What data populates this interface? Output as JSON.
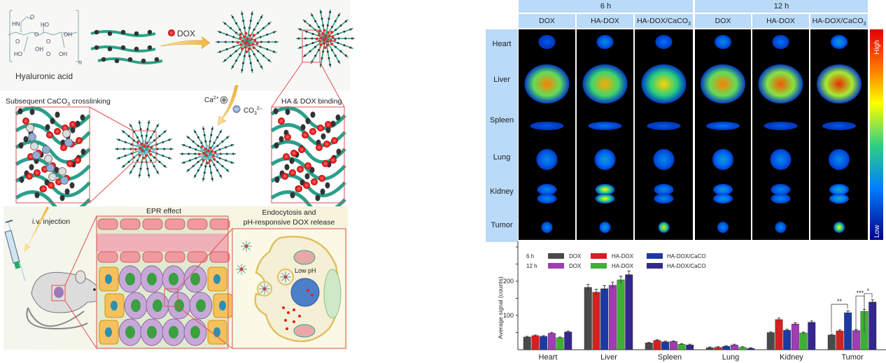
{
  "scheme": {
    "hyaluronic_acid_label": "Hyaluronic acid",
    "repeat_n": "n",
    "structure_atoms": [
      "HN",
      "O",
      "HO",
      "OH",
      "O",
      "O",
      "O",
      "HO",
      "OH",
      "O",
      "OH"
    ],
    "dox_label": "DOX",
    "crosslinking_label": {
      "pre": "Subsequent CaCO",
      "sub": "3",
      "post": " crosslinking"
    },
    "ca_label": {
      "base": "Ca",
      "sup": "2+"
    },
    "co3_label": {
      "base": "CO",
      "sub": "3",
      "sup": "2–"
    },
    "binding_label": "HA & DOX binding",
    "injection_label": "i.v. injection",
    "epr_label": "EPR effect",
    "endocytosis_label_1": "Endocytosis and",
    "endocytosis_label_2": "pH-responsive DOX release",
    "low_ph_label": "Low pH"
  },
  "imaging": {
    "time_groups": [
      "6 h",
      "12 h"
    ],
    "columns": [
      "DOX",
      "HA-DOX",
      "HA-DOX/CaCO",
      "DOX",
      "HA-DOX",
      "HA-DOX/CaCO"
    ],
    "column_sub": [
      "",
      "",
      "3",
      "",
      "",
      "3"
    ],
    "rows": [
      "Heart",
      "Liver",
      "Spleen",
      "Lung",
      "Kidney",
      "Tumor"
    ],
    "colorbar": {
      "high": "High",
      "low": "Low"
    },
    "signal_levels": [
      [
        0.2,
        0.3,
        0.25,
        0.3,
        0.25,
        0.35
      ],
      [
        0.85,
        0.8,
        0.75,
        0.85,
        0.9,
        0.95
      ],
      [
        0.2,
        0.25,
        0.2,
        0.25,
        0.2,
        0.2
      ],
      [
        0.3,
        0.35,
        0.3,
        0.35,
        0.3,
        0.3
      ],
      [
        0.3,
        0.7,
        0.3,
        0.35,
        0.3,
        0.4
      ],
      [
        0.3,
        0.35,
        0.75,
        0.3,
        0.3,
        0.7
      ]
    ]
  },
  "chart_data": {
    "type": "bar",
    "ylabel": "Average signal (counts)",
    "ylim": [
      0,
      300
    ],
    "yticks": [
      100,
      200
    ],
    "categories": [
      "Heart",
      "Liver",
      "Spleen",
      "Lung",
      "Kidney",
      "Tumor"
    ],
    "legend": {
      "rows": [
        "6 h",
        "12 h"
      ],
      "labels": [
        "DOX",
        "HA-DOX",
        "HA-DOX/CaCO"
      ],
      "sub": "3"
    },
    "series": [
      {
        "name": "6 h DOX",
        "color": "#4a4a4a",
        "values": [
          37,
          182,
          20,
          6,
          50,
          43
        ]
      },
      {
        "name": "6 h HA-DOX",
        "color": "#d42020",
        "values": [
          41,
          168,
          27,
          7,
          88,
          55
        ]
      },
      {
        "name": "6 h HA-DOX/CaCO3",
        "color": "#1c3aa6",
        "values": [
          39,
          178,
          23,
          10,
          57,
          108
        ]
      },
      {
        "name": "12 h DOX",
        "color": "#a03cb4",
        "values": [
          48,
          188,
          24,
          14,
          75,
          56
        ]
      },
      {
        "name": "12 h HA-DOX",
        "color": "#3cb034",
        "values": [
          35,
          204,
          16,
          7,
          49,
          112
        ]
      },
      {
        "name": "12 h HA-DOX/CaCO3",
        "color": "#34288e",
        "values": [
          52,
          219,
          14,
          4,
          80,
          139
        ]
      }
    ],
    "significance": [
      "**",
      "***",
      "*"
    ]
  }
}
